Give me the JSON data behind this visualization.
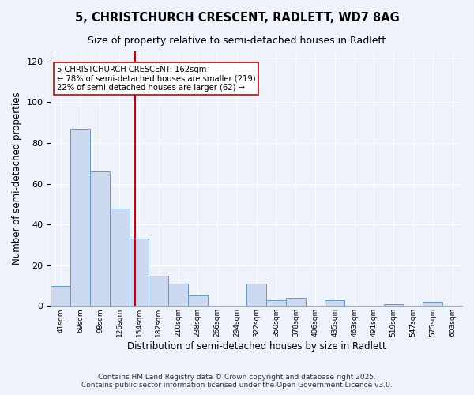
{
  "title": "5, CHRISTCHURCH CRESCENT, RADLETT, WD7 8AG",
  "subtitle": "Size of property relative to semi-detached houses in Radlett",
  "xlabel": "Distribution of semi-detached houses by size in Radlett",
  "ylabel": "Number of semi-detached properties",
  "bin_labels": [
    "41sqm",
    "69sqm",
    "98sqm",
    "126sqm",
    "154sqm",
    "182sqm",
    "210sqm",
    "238sqm",
    "266sqm",
    "294sqm",
    "322sqm",
    "350sqm",
    "378sqm",
    "406sqm",
    "435sqm",
    "463sqm",
    "491sqm",
    "519sqm",
    "547sqm",
    "575sqm",
    "603sqm"
  ],
  "bar_heights": [
    10,
    87,
    66,
    48,
    33,
    15,
    11,
    5,
    0,
    0,
    11,
    3,
    4,
    0,
    3,
    0,
    0,
    1,
    0,
    2,
    0
  ],
  "bar_color": "#ccd9f0",
  "bar_edge_color": "#6699cc",
  "vline_color": "#cc0000",
  "annotation_title": "5 CHRISTCHURCH CRESCENT: 162sqm",
  "annotation_line1": "← 78% of semi-detached houses are smaller (219)",
  "annotation_line2": "22% of semi-detached houses are larger (62) →",
  "annotation_box_color": "#ffffff",
  "annotation_box_edge": "#cc0000",
  "ylim": [
    0,
    125
  ],
  "yticks": [
    0,
    20,
    40,
    60,
    80,
    100,
    120
  ],
  "background_color": "#eef2fb",
  "grid_color": "#ffffff",
  "footer1": "Contains HM Land Registry data © Crown copyright and database right 2025.",
  "footer2": "Contains public sector information licensed under the Open Government Licence v3.0."
}
